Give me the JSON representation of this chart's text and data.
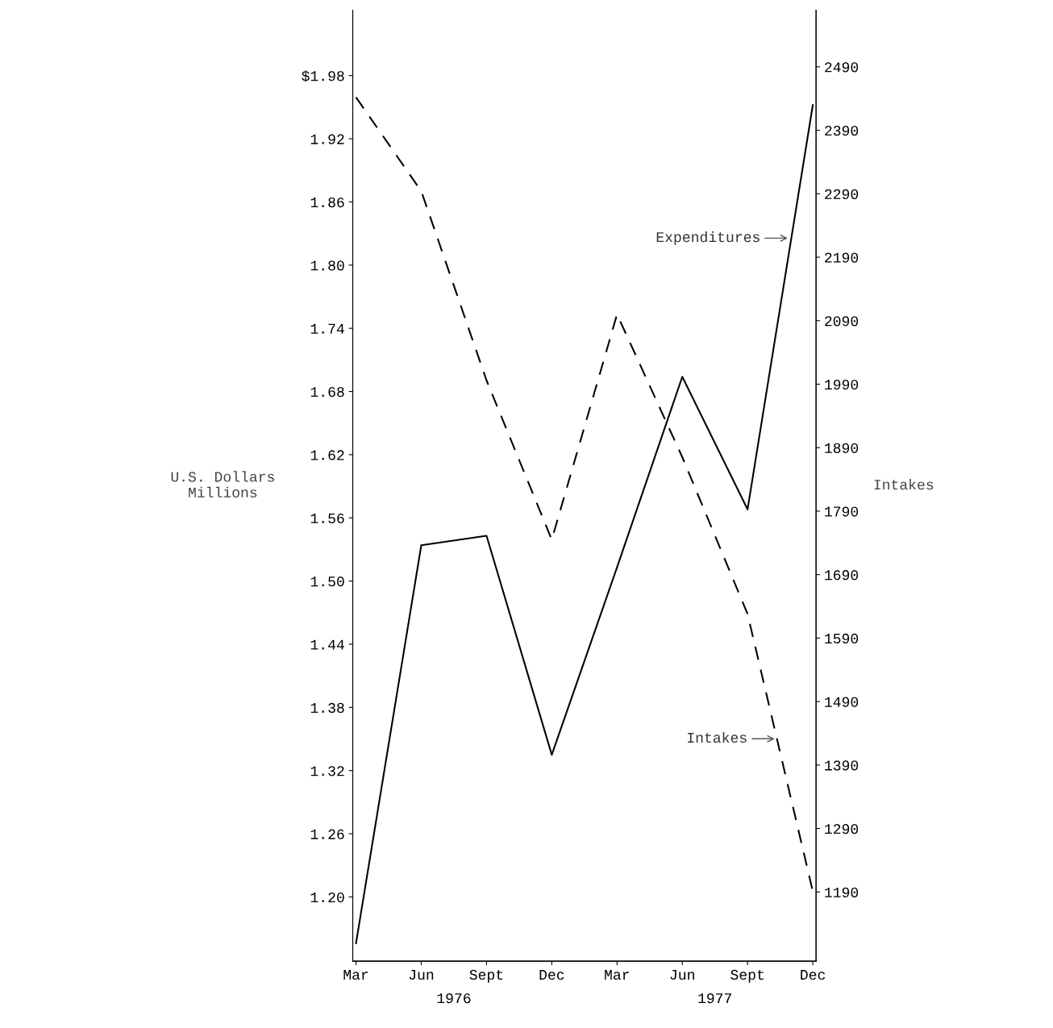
{
  "chart_data": {
    "type": "line",
    "ylabel": "U.S. Dollars\nMillions",
    "y2label": "Intakes",
    "categories": [
      "Mar",
      "Jun",
      "Sept",
      "Dec",
      "Mar",
      "Jun",
      "Sept",
      "Dec"
    ],
    "series": [
      {
        "name": "Expenditures",
        "color": "#000000",
        "line_style": "solid",
        "values": [
          1.156,
          1.534,
          1.543,
          1.335,
          1.513,
          1.694,
          1.568,
          1.952
        ]
      },
      {
        "name": "Intakes",
        "color": "#000000",
        "line_style": "dashed",
        "axis": "y2",
        "values": [
          2442,
          2294,
          1996,
          1745,
          2100,
          1875,
          1628,
          1191
        ]
      }
    ],
    "ylim": [
      1.139,
      2.042
    ],
    "yticks": [
      {
        "value": 1.98,
        "label": "$1.98"
      },
      1.92,
      1.86,
      {
        "value": 1.8,
        "label": "1.80"
      },
      1.74,
      1.68,
      1.62,
      1.56,
      {
        "value": 1.5,
        "label": "1.50"
      },
      1.44,
      1.38,
      1.32,
      1.26,
      {
        "value": 1.2,
        "label": "1.20"
      }
    ],
    "y2lim": [
      1081,
      2579
    ],
    "y2ticks": [
      2490,
      2390,
      2290,
      2190,
      2090,
      1990,
      1890,
      1790,
      1690,
      1590,
      1490,
      1390,
      1290,
      1190
    ],
    "annotations": [
      "1976",
      "1977"
    ],
    "grid": false,
    "legend": false,
    "marker": "none"
  }
}
